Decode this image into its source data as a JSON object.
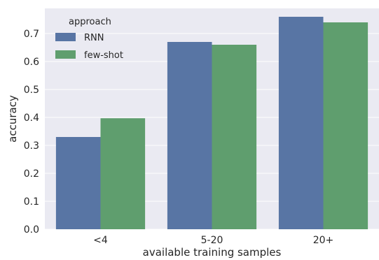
{
  "chart_data": {
    "type": "bar",
    "title": "",
    "xlabel": "available training samples",
    "ylabel": "accuracy",
    "categories": [
      "<4",
      "5-20",
      "20+"
    ],
    "series": [
      {
        "name": "RNN",
        "values": [
          0.33,
          0.67,
          0.76
        ],
        "color": "#5875a4"
      },
      {
        "name": "few-shot",
        "values": [
          0.397,
          0.66,
          0.74
        ],
        "color": "#5f9e6e"
      }
    ],
    "ylim": [
      0,
      0.79
    ],
    "yticks": [
      "0.0",
      "0.1",
      "0.2",
      "0.3",
      "0.4",
      "0.5",
      "0.6",
      "0.7"
    ],
    "grid": true,
    "background": "#eaeaf2",
    "legend": {
      "title": "approach",
      "placement": "top-left"
    }
  }
}
